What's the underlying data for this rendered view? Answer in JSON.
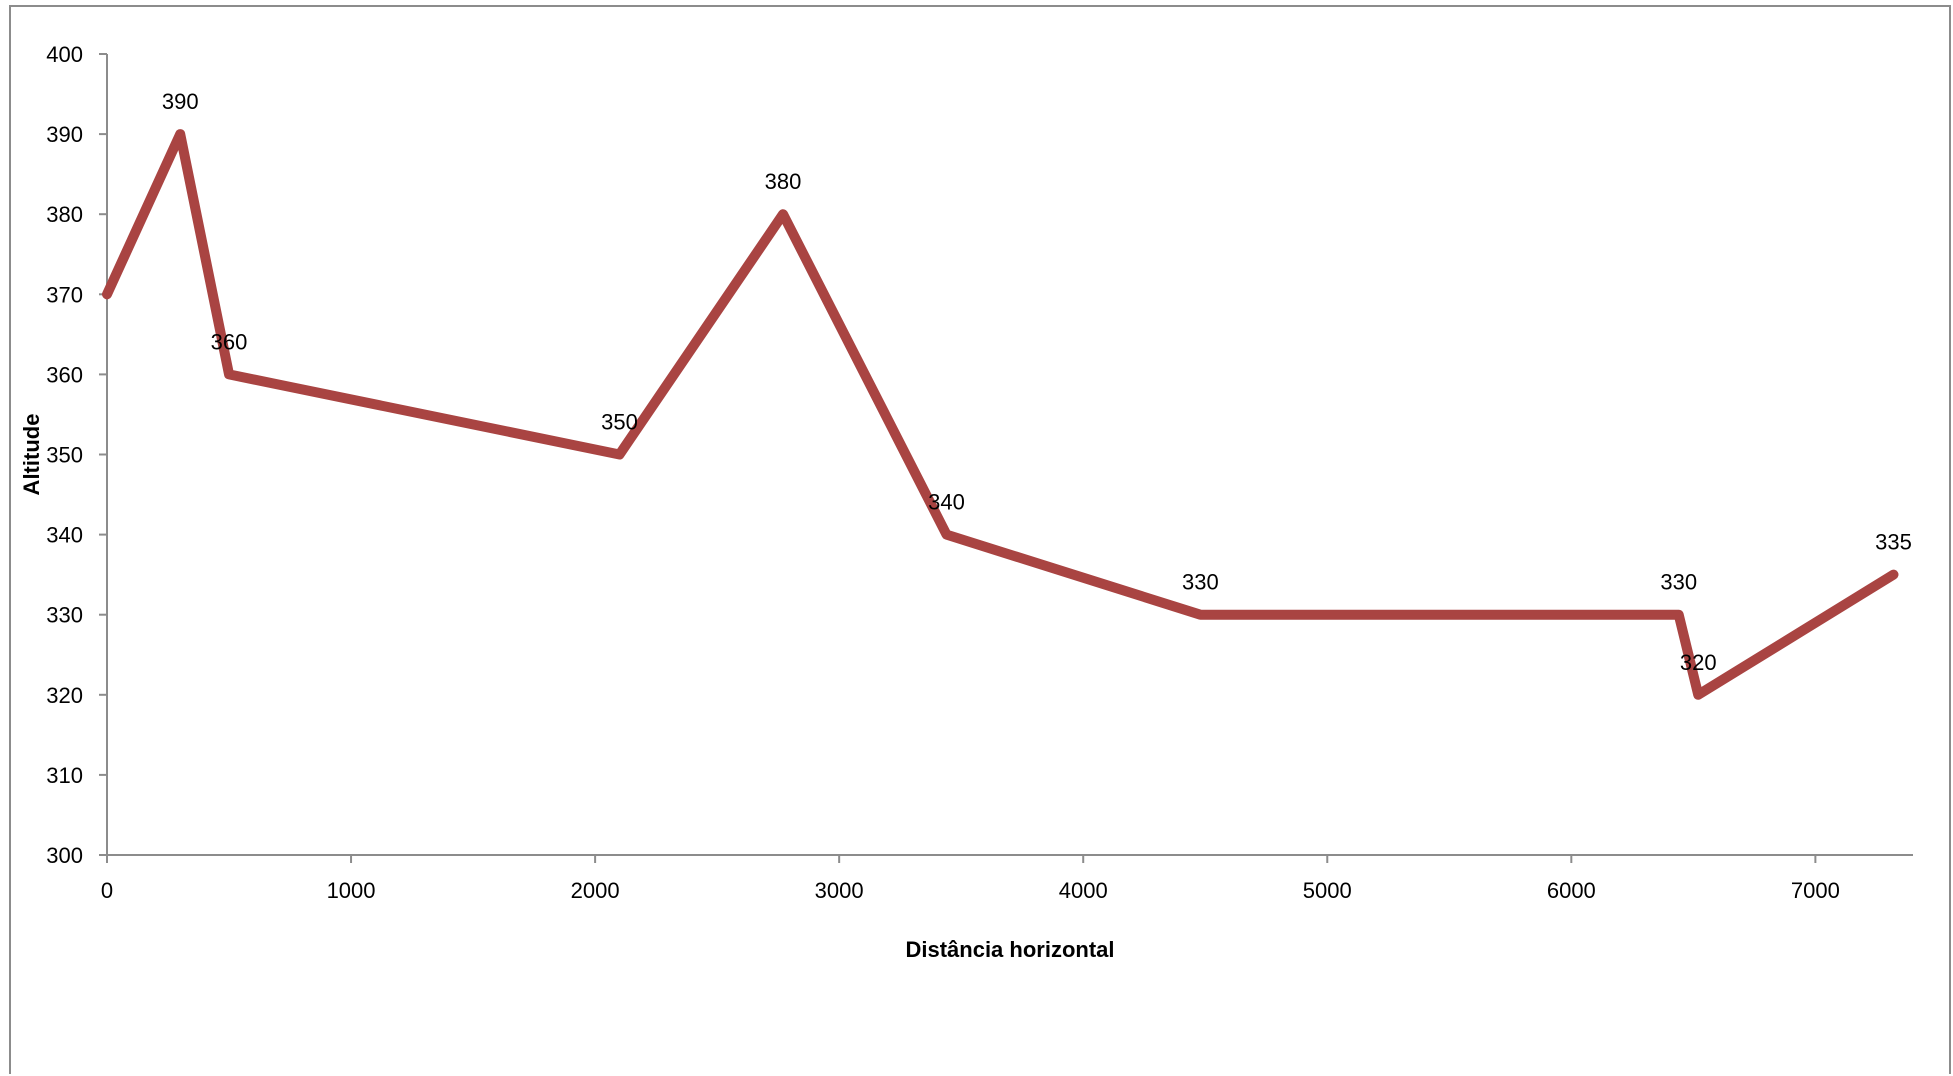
{
  "chart_data": {
    "type": "line",
    "xlabel": "Distância horizontal",
    "ylabel": "Altitude",
    "xlim": [
      0,
      7400
    ],
    "ylim": [
      300,
      400
    ],
    "x_ticks": [
      0,
      1000,
      2000,
      3000,
      4000,
      5000,
      6000,
      7000
    ],
    "y_ticks": [
      300,
      310,
      320,
      330,
      340,
      350,
      360,
      370,
      380,
      390,
      400
    ],
    "grid": false,
    "legend": "none",
    "line_color": "#a94442",
    "series": [
      {
        "x": [
          0,
          300,
          500,
          2100,
          2770,
          3440,
          4480,
          6440,
          6520,
          7320
        ],
        "y": [
          370,
          390,
          360,
          350,
          380,
          340,
          330,
          330,
          320,
          335
        ],
        "data_labels": [
          "",
          "390",
          "360",
          "350",
          "380",
          "340",
          "330",
          "330",
          "320",
          "335"
        ]
      }
    ]
  }
}
